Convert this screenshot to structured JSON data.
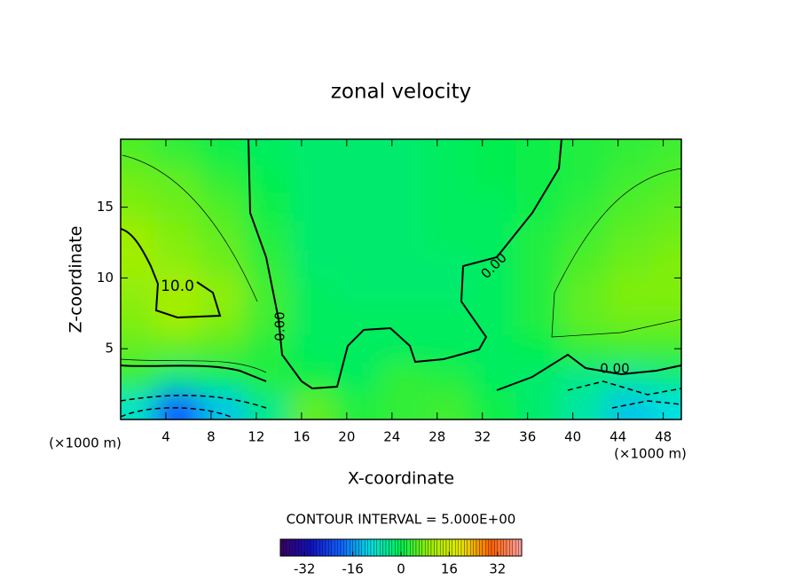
{
  "chart_data": {
    "type": "contour",
    "title": "zonal velocity",
    "xlabel": "X-coordinate",
    "ylabel": "Z-coordinate",
    "x_unit_label": "(×1000 m)",
    "footer": "CONTOUR INTERVAL = 5.000E+00",
    "xlim": [
      0,
      49.6
    ],
    "ylim": [
      0,
      19.8
    ],
    "xticks": [
      4,
      8,
      12,
      16,
      20,
      24,
      28,
      32,
      36,
      40,
      44,
      48
    ],
    "yticks": [
      5,
      10,
      15
    ],
    "x": [
      1,
      5,
      9,
      13,
      17,
      21,
      25,
      29,
      33,
      37,
      41,
      45,
      49
    ],
    "z": [
      1,
      3,
      5,
      7,
      9,
      11,
      13,
      15,
      17,
      19
    ],
    "values": [
      [
        -8,
        -20,
        -12,
        -4,
        6,
        2,
        3,
        4,
        1,
        -2,
        -6,
        -12,
        -10
      ],
      [
        3,
        -3,
        -1,
        2,
        1,
        -1,
        3,
        2,
        -1,
        -2,
        -4,
        -5,
        -3
      ],
      [
        6,
        6,
        5,
        2,
        -1,
        -1,
        -1,
        -1,
        -1,
        0,
        3,
        4,
        4
      ],
      [
        8,
        10,
        8,
        4,
        -1,
        -1,
        -1,
        -1,
        -1,
        2,
        6,
        7,
        7
      ],
      [
        9,
        11,
        9,
        4,
        -1,
        -2,
        -2,
        -2,
        -1,
        2,
        6,
        8,
        8
      ],
      [
        10,
        9,
        7,
        3,
        -2,
        -2,
        -2,
        -2,
        -1,
        2,
        5,
        7,
        8
      ],
      [
        10,
        8,
        6,
        2,
        -2,
        -2,
        -2,
        -1,
        -1,
        2,
        4,
        6,
        7
      ],
      [
        8,
        7,
        5,
        1,
        -2,
        -2,
        -2,
        -1,
        -1,
        1,
        3,
        5,
        6
      ],
      [
        7,
        6,
        3,
        0,
        -2,
        -2,
        -2,
        -1,
        0,
        1,
        2,
        4,
        5
      ],
      [
        5,
        3,
        1,
        -1,
        -2,
        -2,
        -2,
        -1,
        0,
        1,
        2,
        3,
        4
      ]
    ],
    "contour_labels": [
      "10.0",
      "0.00",
      "0.00",
      "0.00"
    ],
    "clim": [
      -40,
      40
    ],
    "cbar_ticks": [
      -32,
      -16,
      0,
      16,
      32
    ],
    "colormap": [
      "#3a0060",
      "#1010c0",
      "#1060ff",
      "#00e0e0",
      "#00ee50",
      "#a0ee00",
      "#e8e800",
      "#ff6000",
      "#ffa0a0"
    ]
  }
}
